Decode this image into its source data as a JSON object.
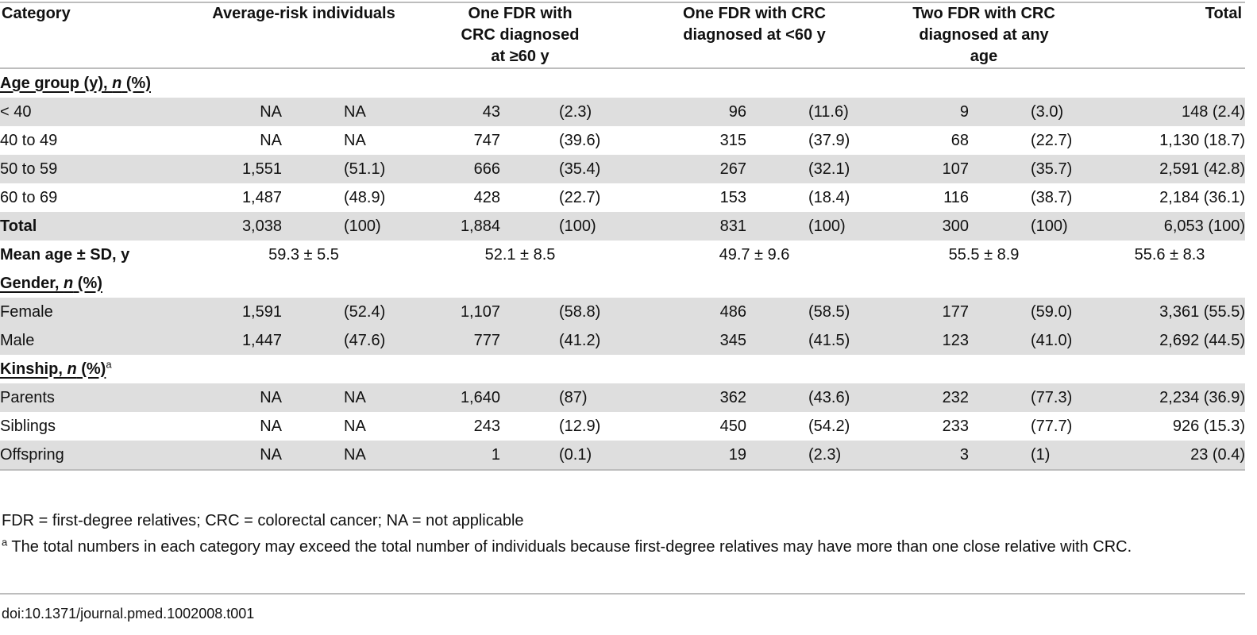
{
  "header": {
    "category": "Category",
    "avg_risk": "Average-risk individuals",
    "fdr_ge60_line1": "One FDR with",
    "fdr_ge60_line2": "CRC diagnosed",
    "fdr_ge60_line3": "at ≥60 y",
    "fdr_lt60_line1": "One FDR with CRC",
    "fdr_lt60_line2": "diagnosed at <60 y",
    "two_fdr_line1": "Two FDR with CRC",
    "two_fdr_line2": "diagnosed at any",
    "two_fdr_line3": "age",
    "total": "Total"
  },
  "sections": {
    "age": {
      "label_main": "Age group (y), ",
      "label_n": "n",
      "label_pct": " (%)"
    },
    "gender": {
      "label_main": "Gender, ",
      "label_n": "n",
      "label_pct": " (%)"
    },
    "kinship": {
      "label_main": "Kinship, ",
      "label_n": "n",
      "label_pct": " (%)",
      "sup": "a"
    }
  },
  "age_rows": [
    {
      "label": "< 40",
      "avg_n": "NA",
      "avg_p": "NA",
      "g1_n": "43",
      "g1_p": "(2.3)",
      "g2_n": "96",
      "g2_p": "(11.6)",
      "g3_n": "9",
      "g3_p": "(3.0)",
      "total": "148 (2.4)"
    },
    {
      "label": "40 to 49",
      "avg_n": "NA",
      "avg_p": "NA",
      "g1_n": "747",
      "g1_p": "(39.6)",
      "g2_n": "315",
      "g2_p": "(37.9)",
      "g3_n": "68",
      "g3_p": "(22.7)",
      "total": "1,130 (18.7)"
    },
    {
      "label": "50 to 59",
      "avg_n": "1,551",
      "avg_p": "(51.1)",
      "g1_n": "666",
      "g1_p": "(35.4)",
      "g2_n": "267",
      "g2_p": "(32.1)",
      "g3_n": "107",
      "g3_p": "(35.7)",
      "total": "2,591 (42.8)"
    },
    {
      "label": "60 to 69",
      "avg_n": "1,487",
      "avg_p": "(48.9)",
      "g1_n": "428",
      "g1_p": "(22.7)",
      "g2_n": "153",
      "g2_p": "(18.4)",
      "g3_n": "116",
      "g3_p": "(38.7)",
      "total": "2,184 (36.1)"
    }
  ],
  "age_total": {
    "label": "Total",
    "avg_n": "3,038",
    "avg_p": "(100)",
    "g1_n": "1,884",
    "g1_p": "(100)",
    "g2_n": "831",
    "g2_p": "(100)",
    "g3_n": "300",
    "g3_p": "(100)",
    "total": "6,053 (100)"
  },
  "mean_age": {
    "label": "Mean age ± SD, y",
    "avg": "59.3 ± 5.5",
    "g1": "52.1 ± 8.5",
    "g2": "49.7 ± 9.6",
    "g3": "55.5 ± 8.9",
    "total": "55.6 ± 8.3"
  },
  "gender_rows": [
    {
      "label": "Female",
      "avg_n": "1,591",
      "avg_p": "(52.4)",
      "g1_n": "1,107",
      "g1_p": "(58.8)",
      "g2_n": "486",
      "g2_p": "(58.5)",
      "g3_n": "177",
      "g3_p": "(59.0)",
      "total": "3,361 (55.5)"
    },
    {
      "label": "Male",
      "avg_n": "1,447",
      "avg_p": "(47.6)",
      "g1_n": "777",
      "g1_p": "(41.2)",
      "g2_n": "345",
      "g2_p": "(41.5)",
      "g3_n": "123",
      "g3_p": "(41.0)",
      "total": "2,692 (44.5)"
    }
  ],
  "kinship_rows": [
    {
      "label": "Parents",
      "avg_n": "NA",
      "avg_p": "NA",
      "g1_n": "1,640",
      "g1_p": "(87)",
      "g2_n": "362",
      "g2_p": "(43.6)",
      "g3_n": "232",
      "g3_p": "(77.3)",
      "total": "2,234 (36.9)"
    },
    {
      "label": "Siblings",
      "avg_n": "NA",
      "avg_p": "NA",
      "g1_n": "243",
      "g1_p": "(12.9)",
      "g2_n": "450",
      "g2_p": "(54.2)",
      "g3_n": "233",
      "g3_p": "(77.7)",
      "total": "926 (15.3)"
    },
    {
      "label": "Offspring",
      "avg_n": "NA",
      "avg_p": "NA",
      "g1_n": "1",
      "g1_p": "(0.1)",
      "g2_n": "19",
      "g2_p": "(2.3)",
      "g3_n": "3",
      "g3_p": "(1)",
      "total": "23 (0.4)"
    }
  ],
  "footnotes": {
    "abbrev": "FDR = first-degree relatives; CRC = colorectal cancer; NA = not applicable",
    "a_marker": "a",
    "a_text": " The total numbers in each category may exceed the total number of individuals because first-degree relatives may have more than one close relative with CRC."
  },
  "doi": "doi:10.1371/journal.pmed.1002008.t001",
  "colors": {
    "shade": "#dedede",
    "rule": "#bdbdbd"
  }
}
